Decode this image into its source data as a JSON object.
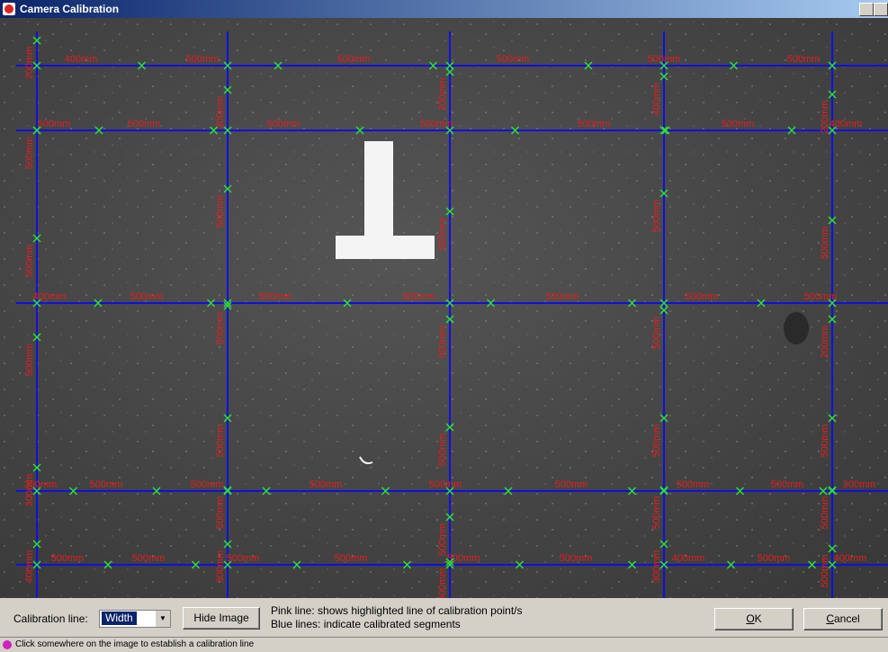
{
  "window": {
    "title": "Camera Calibration"
  },
  "image": {
    "horizontal_labels": [
      [
        "400mm",
        "500mm",
        "500mm",
        "500mm",
        "500mm",
        "500mm"
      ],
      [
        "500mm",
        "500mm",
        "500mm",
        "500mm",
        "500mm",
        "500mm",
        "400mm"
      ],
      [
        "400mm",
        "500mm",
        "500mm",
        "500mm",
        "500mm",
        "500mm",
        "500mm"
      ],
      [
        "300mm",
        "500mm",
        "500mm",
        "500mm",
        "500mm",
        "500mm",
        "500mm",
        "500mm",
        "300mm"
      ],
      [
        "500mm",
        "500mm",
        "500mm",
        "500mm",
        "500mm",
        "500mm",
        "400mm",
        "500mm",
        "400mm"
      ]
    ],
    "vertical_labels": [
      [
        "200mm",
        "500mm",
        "500mm",
        "500mm",
        "300mm",
        "400mm"
      ],
      [
        "300mm",
        "500mm",
        "500mm",
        "500mm",
        "500mm",
        "300mm"
      ],
      [
        "200mm",
        "500mm",
        "500mm",
        "500mm",
        "500mm",
        "300mm"
      ],
      [
        "400mm",
        "500mm",
        "500mm",
        "500mm",
        "500mm",
        "300mm"
      ],
      [
        "200mm",
        "500mm",
        "200mm",
        "500mm",
        "500mm",
        "500mm"
      ]
    ]
  },
  "controls": {
    "calibration_label": "Calibration line:",
    "calibration_value": "Width",
    "hide_button": "Hide Image",
    "help_line_1": "Pink line: shows highlighted line of calibration point/s",
    "help_line_2": "Blue lines: indicate calibrated segments",
    "ok_button": "OK",
    "cancel_button": "Cancel"
  },
  "status": {
    "text": "Click somewhere on the image to establish a calibration line"
  }
}
